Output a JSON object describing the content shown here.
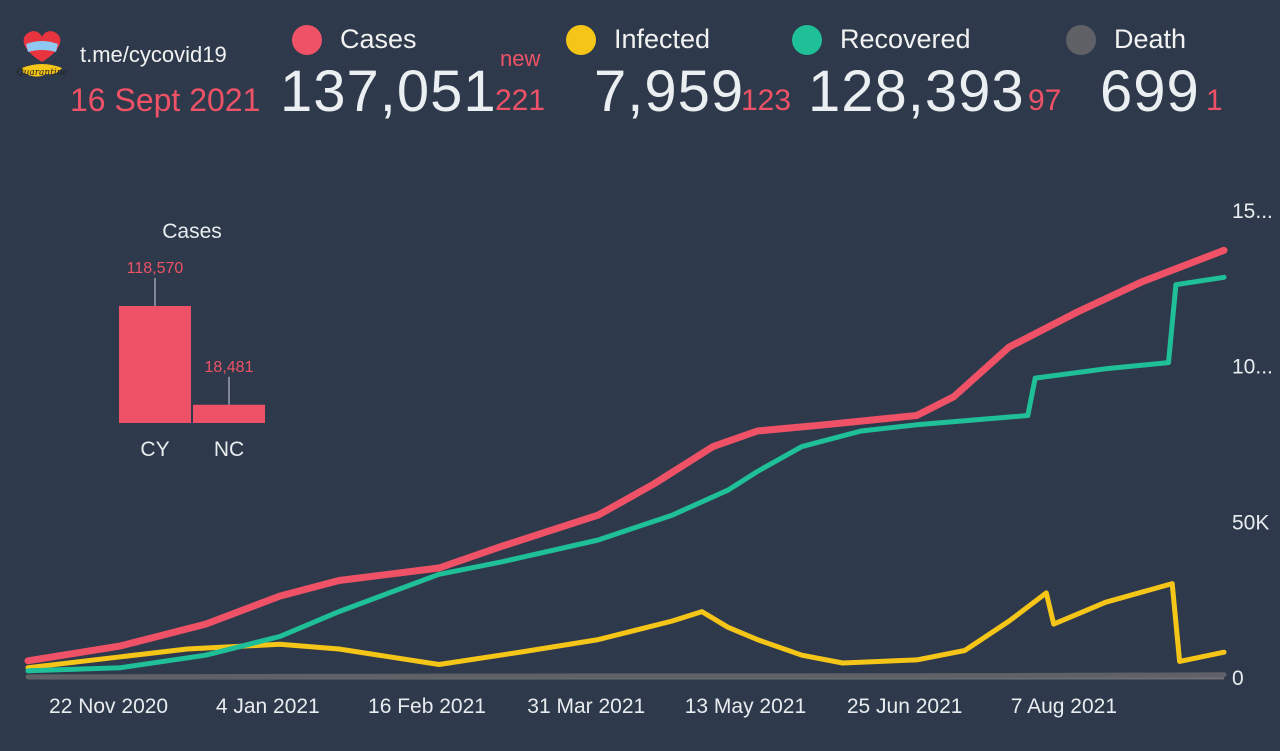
{
  "header": {
    "channel": "t.me/cycovid19",
    "date": "16 Sept 2021",
    "new_label": "new"
  },
  "legend": [
    {
      "key": "cases",
      "label": "Cases",
      "color": "#ef5266"
    },
    {
      "key": "infected",
      "label": "Infected",
      "color": "#f5c518"
    },
    {
      "key": "recovered",
      "label": "Recovered",
      "color": "#1fbf97"
    },
    {
      "key": "death",
      "label": "Death",
      "color": "#5f6166"
    }
  ],
  "stats": {
    "cases": {
      "total": "137,051",
      "new": "221"
    },
    "infected": {
      "total": "7,959",
      "new": "123"
    },
    "recovered": {
      "total": "128,393",
      "new": "97"
    },
    "death": {
      "total": "699",
      "new": "1"
    }
  },
  "chart_data": [
    {
      "type": "bar",
      "title": "Cases",
      "categories": [
        "CY",
        "NC"
      ],
      "values": [
        118570,
        18481
      ],
      "data_labels": [
        "118,570",
        "18,481"
      ],
      "color": "#ef5266"
    },
    {
      "type": "line",
      "x_ticks": [
        "22 Nov 2020",
        "4 Jan 2021",
        "16 Feb 2021",
        "31 Mar 2021",
        "13 May 2021",
        "25 Jun 2021",
        "7 Aug 2021"
      ],
      "x_range": [
        "2020-10-28",
        "2021-09-16"
      ],
      "y_ticks": [
        "15...",
        "10...",
        "50K",
        "0"
      ],
      "ylim": [
        0,
        150000
      ],
      "grid": false,
      "series": [
        {
          "name": "Cases",
          "color": "#ef5266",
          "points": [
            [
              "2020-10-28",
              5200
            ],
            [
              "2020-11-22",
              10000
            ],
            [
              "2020-12-15",
              17000
            ],
            [
              "2021-01-04",
              26000
            ],
            [
              "2021-01-20",
              31000
            ],
            [
              "2021-02-16",
              35000
            ],
            [
              "2021-03-05",
              42000
            ],
            [
              "2021-03-31",
              52000
            ],
            [
              "2021-04-15",
              62000
            ],
            [
              "2021-05-01",
              74000
            ],
            [
              "2021-05-13",
              79000
            ],
            [
              "2021-05-31",
              81000
            ],
            [
              "2021-06-25",
              84000
            ],
            [
              "2021-07-05",
              90000
            ],
            [
              "2021-07-20",
              106000
            ],
            [
              "2021-08-07",
              117000
            ],
            [
              "2021-08-25",
              127000
            ],
            [
              "2021-09-16",
              137051
            ]
          ]
        },
        {
          "name": "Infected",
          "color": "#f5c518",
          "points": [
            [
              "2020-10-28",
              3000
            ],
            [
              "2020-11-22",
              6500
            ],
            [
              "2020-12-10",
              9000
            ],
            [
              "2021-01-04",
              10500
            ],
            [
              "2021-01-20",
              9000
            ],
            [
              "2021-02-16",
              4000
            ],
            [
              "2021-03-10",
              8000
            ],
            [
              "2021-03-31",
              12000
            ],
            [
              "2021-04-20",
              18000
            ],
            [
              "2021-04-28",
              21000
            ],
            [
              "2021-05-05",
              16000
            ],
            [
              "2021-05-13",
              12000
            ],
            [
              "2021-05-25",
              7000
            ],
            [
              "2021-06-05",
              4500
            ],
            [
              "2021-06-25",
              5500
            ],
            [
              "2021-07-08",
              8500
            ],
            [
              "2021-07-20",
              18000
            ],
            [
              "2021-07-30",
              27000
            ],
            [
              "2021-08-01",
              17000
            ],
            [
              "2021-08-15",
              24000
            ],
            [
              "2021-09-02",
              30000
            ],
            [
              "2021-09-04",
              5000
            ],
            [
              "2021-09-16",
              7959
            ]
          ]
        },
        {
          "name": "Recovered",
          "color": "#1fbf97",
          "points": [
            [
              "2020-10-28",
              2000
            ],
            [
              "2020-11-22",
              3000
            ],
            [
              "2020-12-15",
              7000
            ],
            [
              "2021-01-04",
              13000
            ],
            [
              "2021-01-20",
              21000
            ],
            [
              "2021-02-16",
              33000
            ],
            [
              "2021-03-05",
              37000
            ],
            [
              "2021-03-31",
              44000
            ],
            [
              "2021-04-20",
              52000
            ],
            [
              "2021-05-05",
              60000
            ],
            [
              "2021-05-13",
              66000
            ],
            [
              "2021-05-25",
              74000
            ],
            [
              "2021-06-10",
              79000
            ],
            [
              "2021-06-25",
              81000
            ],
            [
              "2021-07-10",
              82500
            ],
            [
              "2021-07-25",
              84000
            ],
            [
              "2021-07-27",
              96000
            ],
            [
              "2021-08-15",
              99000
            ],
            [
              "2021-09-01",
              101000
            ],
            [
              "2021-09-03",
              126000
            ],
            [
              "2021-09-16",
              128393
            ]
          ]
        },
        {
          "name": "Death",
          "color": "#5f6166",
          "points": [
            [
              "2020-10-28",
              30
            ],
            [
              "2021-01-04",
              200
            ],
            [
              "2021-03-31",
              350
            ],
            [
              "2021-06-25",
              380
            ],
            [
              "2021-09-16",
              699
            ]
          ]
        }
      ]
    }
  ]
}
